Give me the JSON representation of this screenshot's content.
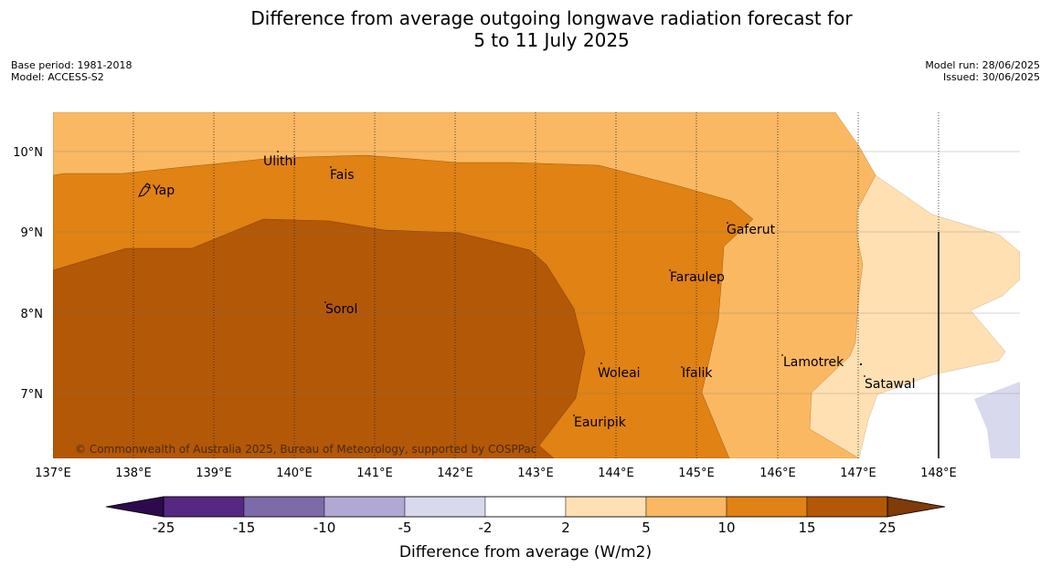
{
  "title": {
    "line1": "Difference from average outgoing longwave radiation forecast for",
    "line2": "5 to 11 July 2025"
  },
  "meta_left": {
    "base_period": "Base period: 1981-2018",
    "model": "Model: ACCESS-S2"
  },
  "meta_right": {
    "model_run": "Model run: 28/06/2025",
    "issued": "Issued: 30/06/2025"
  },
  "map": {
    "lon_labels": [
      "137°E",
      "138°E",
      "139°E",
      "140°E",
      "141°E",
      "142°E",
      "143°E",
      "144°E",
      "145°E",
      "146°E",
      "147°E",
      "148°E"
    ],
    "lat_labels": [
      "10°N",
      "9°N",
      "8°N",
      "7°N"
    ],
    "places": [
      "Yap",
      "Ulithi",
      "Fais",
      "Gaferut",
      "Faraulep",
      "Sorol",
      "Woleai",
      "Ifalik",
      "Lamotrek",
      "Satawal",
      "Eauripik"
    ],
    "credit": "© Commonwealth of Australia 2025, Bureau of Meteorology, supported by COSPPac"
  },
  "colorbar": {
    "title": "Difference from average (W/m2)",
    "tick_labels": [
      "-25",
      "-15",
      "-10",
      "-5",
      "-2",
      "2",
      "5",
      "10",
      "15",
      "25"
    ],
    "colors": [
      "#562883",
      "#7d6aa9",
      "#b2a8d4",
      "#d8d9ed",
      "#ffffff",
      "#fee0b3",
      "#fbb862",
      "#e08214",
      "#b35807"
    ],
    "under_color": "#2d0a4e",
    "over_color": "#7f3b08"
  }
}
